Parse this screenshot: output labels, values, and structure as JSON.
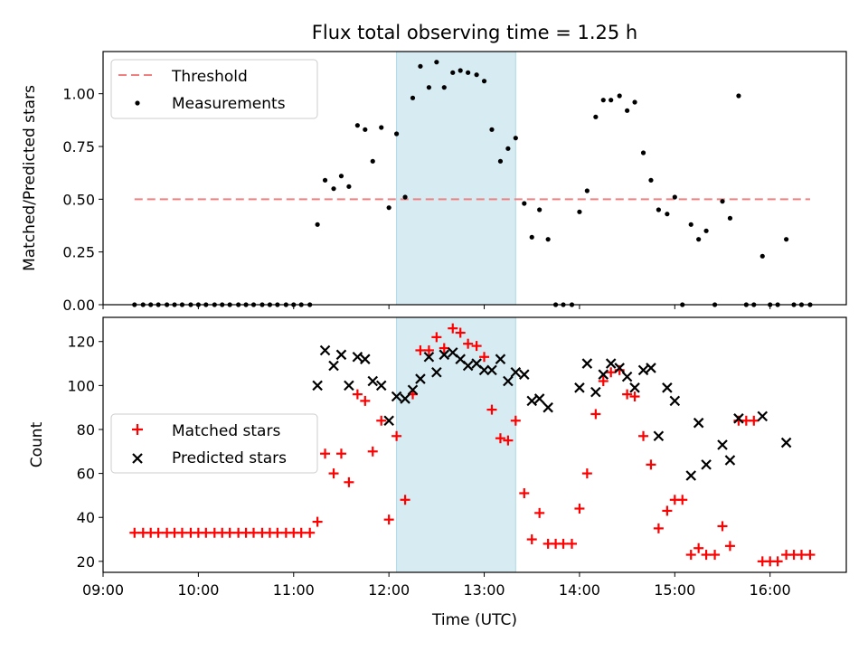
{
  "title": "Flux total observing time = 1.25 h",
  "colors": {
    "threshold": "#f08080",
    "measurements": "#000000",
    "matched": "#ff0000",
    "predicted": "#000000",
    "span": "#add8e6"
  },
  "highlight_span_hours": [
    12.08,
    13.33
  ],
  "chart_data": [
    {
      "type": "scatter",
      "panel": "top",
      "title": "Flux total observing time = 1.25 h",
      "ylabel": "Matched/Predicted stars",
      "xlabel": "",
      "xlim": [
        9.0,
        16.8
      ],
      "ylim": [
        0,
        1.2
      ],
      "yticks": [
        "0.00",
        "0.25",
        "0.50",
        "0.75",
        "1.00"
      ],
      "legend": {
        "placement": "upper-left",
        "entries": [
          "Threshold",
          "Measurements"
        ]
      },
      "threshold": {
        "name": "Threshold",
        "value": 0.5,
        "x": [
          9.33,
          16.42
        ]
      },
      "series": [
        {
          "name": "Measurements",
          "points": [
            [
              9.33,
              0
            ],
            [
              9.42,
              0
            ],
            [
              9.5,
              0
            ],
            [
              9.58,
              0
            ],
            [
              9.67,
              0
            ],
            [
              9.75,
              0
            ],
            [
              9.83,
              0
            ],
            [
              9.92,
              0
            ],
            [
              10.0,
              0
            ],
            [
              10.08,
              0
            ],
            [
              10.17,
              0
            ],
            [
              10.25,
              0
            ],
            [
              10.33,
              0
            ],
            [
              10.42,
              0
            ],
            [
              10.5,
              0
            ],
            [
              10.58,
              0
            ],
            [
              10.67,
              0
            ],
            [
              10.75,
              0
            ],
            [
              10.83,
              0
            ],
            [
              10.92,
              0
            ],
            [
              11.0,
              0
            ],
            [
              11.08,
              0
            ],
            [
              11.17,
              0
            ],
            [
              11.25,
              0.38
            ],
            [
              11.33,
              0.59
            ],
            [
              11.42,
              0.55
            ],
            [
              11.5,
              0.61
            ],
            [
              11.58,
              0.56
            ],
            [
              11.67,
              0.85
            ],
            [
              11.75,
              0.83
            ],
            [
              11.83,
              0.68
            ],
            [
              11.92,
              0.84
            ],
            [
              12.0,
              0.46
            ],
            [
              12.08,
              0.81
            ],
            [
              12.17,
              0.51
            ],
            [
              12.25,
              0.98
            ],
            [
              12.33,
              1.13
            ],
            [
              12.42,
              1.03
            ],
            [
              12.5,
              1.15
            ],
            [
              12.58,
              1.03
            ],
            [
              12.67,
              1.1
            ],
            [
              12.75,
              1.11
            ],
            [
              12.83,
              1.1
            ],
            [
              12.92,
              1.09
            ],
            [
              13.0,
              1.06
            ],
            [
              13.08,
              0.83
            ],
            [
              13.17,
              0.68
            ],
            [
              13.25,
              0.74
            ],
            [
              13.33,
              0.79
            ],
            [
              13.42,
              0.48
            ],
            [
              13.5,
              0.32
            ],
            [
              13.58,
              0.45
            ],
            [
              13.67,
              0.31
            ],
            [
              13.75,
              0
            ],
            [
              13.83,
              0
            ],
            [
              13.92,
              0
            ],
            [
              14.0,
              0.44
            ],
            [
              14.08,
              0.54
            ],
            [
              14.17,
              0.89
            ],
            [
              14.25,
              0.97
            ],
            [
              14.33,
              0.97
            ],
            [
              14.42,
              0.99
            ],
            [
              14.5,
              0.92
            ],
            [
              14.58,
              0.96
            ],
            [
              14.67,
              0.72
            ],
            [
              14.75,
              0.59
            ],
            [
              14.83,
              0.45
            ],
            [
              14.92,
              0.43
            ],
            [
              15.0,
              0.51
            ],
            [
              15.08,
              0
            ],
            [
              15.17,
              0.38
            ],
            [
              15.25,
              0.31
            ],
            [
              15.33,
              0.35
            ],
            [
              15.42,
              0
            ],
            [
              15.5,
              0.49
            ],
            [
              15.58,
              0.41
            ],
            [
              15.67,
              0.99
            ],
            [
              15.75,
              0
            ],
            [
              15.83,
              0
            ],
            [
              15.92,
              0.23
            ],
            [
              16.0,
              0
            ],
            [
              16.08,
              0
            ],
            [
              16.17,
              0.31
            ],
            [
              16.25,
              0
            ],
            [
              16.33,
              0
            ],
            [
              16.42,
              0
            ]
          ]
        }
      ]
    },
    {
      "type": "scatter",
      "panel": "bottom",
      "xlabel": "Time (UTC)",
      "ylabel": "Count",
      "xlim": [
        9.0,
        16.8
      ],
      "ylim": [
        15,
        131
      ],
      "xticks": [
        "09:00",
        "10:00",
        "11:00",
        "12:00",
        "13:00",
        "14:00",
        "15:00",
        "16:00"
      ],
      "yticks": [
        "20",
        "40",
        "60",
        "80",
        "100",
        "120"
      ],
      "legend": {
        "placement": "center-left",
        "entries": [
          "Matched stars",
          "Predicted stars"
        ]
      },
      "series": [
        {
          "name": "Matched stars",
          "points": [
            [
              9.33,
              33
            ],
            [
              9.42,
              33
            ],
            [
              9.5,
              33
            ],
            [
              9.58,
              33
            ],
            [
              9.67,
              33
            ],
            [
              9.75,
              33
            ],
            [
              9.83,
              33
            ],
            [
              9.92,
              33
            ],
            [
              10.0,
              33
            ],
            [
              10.08,
              33
            ],
            [
              10.17,
              33
            ],
            [
              10.25,
              33
            ],
            [
              10.33,
              33
            ],
            [
              10.42,
              33
            ],
            [
              10.5,
              33
            ],
            [
              10.58,
              33
            ],
            [
              10.67,
              33
            ],
            [
              10.75,
              33
            ],
            [
              10.83,
              33
            ],
            [
              10.92,
              33
            ],
            [
              11.0,
              33
            ],
            [
              11.08,
              33
            ],
            [
              11.17,
              33
            ],
            [
              11.25,
              38
            ],
            [
              11.33,
              69
            ],
            [
              11.42,
              60
            ],
            [
              11.5,
              69
            ],
            [
              11.58,
              56
            ],
            [
              11.67,
              96
            ],
            [
              11.75,
              93
            ],
            [
              11.83,
              70
            ],
            [
              11.92,
              84
            ],
            [
              12.0,
              39
            ],
            [
              12.08,
              77
            ],
            [
              12.17,
              48
            ],
            [
              12.25,
              96
            ],
            [
              12.33,
              116
            ],
            [
              12.42,
              116
            ],
            [
              12.5,
              122
            ],
            [
              12.58,
              117
            ],
            [
              12.67,
              126
            ],
            [
              12.75,
              124
            ],
            [
              12.83,
              119
            ],
            [
              12.92,
              118
            ],
            [
              13.0,
              113
            ],
            [
              13.08,
              89
            ],
            [
              13.17,
              76
            ],
            [
              13.25,
              75
            ],
            [
              13.33,
              84
            ],
            [
              13.42,
              51
            ],
            [
              13.5,
              30
            ],
            [
              13.58,
              42
            ],
            [
              13.67,
              28
            ],
            [
              13.75,
              28
            ],
            [
              13.83,
              28
            ],
            [
              13.92,
              28
            ],
            [
              14.0,
              44
            ],
            [
              14.08,
              60
            ],
            [
              14.17,
              87
            ],
            [
              14.25,
              102
            ],
            [
              14.33,
              106
            ],
            [
              14.42,
              107
            ],
            [
              14.5,
              96
            ],
            [
              14.58,
              95
            ],
            [
              14.67,
              77
            ],
            [
              14.75,
              64
            ],
            [
              14.83,
              35
            ],
            [
              14.92,
              43
            ],
            [
              15.0,
              48
            ],
            [
              15.08,
              48
            ],
            [
              15.17,
              23
            ],
            [
              15.25,
              26
            ],
            [
              15.33,
              23
            ],
            [
              15.42,
              23
            ],
            [
              15.5,
              36
            ],
            [
              15.58,
              27
            ],
            [
              15.67,
              84
            ],
            [
              15.75,
              84
            ],
            [
              15.83,
              84
            ],
            [
              15.92,
              20
            ],
            [
              16.0,
              20
            ],
            [
              16.08,
              20
            ],
            [
              16.17,
              23
            ],
            [
              16.25,
              23
            ],
            [
              16.33,
              23
            ],
            [
              16.42,
              23
            ]
          ]
        },
        {
          "name": "Predicted stars",
          "points": [
            [
              11.25,
              100
            ],
            [
              11.33,
              116
            ],
            [
              11.42,
              109
            ],
            [
              11.5,
              114
            ],
            [
              11.58,
              100
            ],
            [
              11.67,
              113
            ],
            [
              11.75,
              112
            ],
            [
              11.83,
              102
            ],
            [
              11.92,
              100
            ],
            [
              12.0,
              84
            ],
            [
              12.08,
              95
            ],
            [
              12.17,
              94
            ],
            [
              12.25,
              98
            ],
            [
              12.33,
              103
            ],
            [
              12.42,
              113
            ],
            [
              12.5,
              106
            ],
            [
              12.58,
              114
            ],
            [
              12.67,
              115
            ],
            [
              12.75,
              112
            ],
            [
              12.83,
              109
            ],
            [
              12.92,
              110
            ],
            [
              13.0,
              107
            ],
            [
              13.08,
              107
            ],
            [
              13.17,
              112
            ],
            [
              13.25,
              102
            ],
            [
              13.33,
              106
            ],
            [
              13.42,
              105
            ],
            [
              13.5,
              93
            ],
            [
              13.58,
              94
            ],
            [
              13.67,
              90
            ],
            [
              14.0,
              99
            ],
            [
              14.08,
              110
            ],
            [
              14.17,
              97
            ],
            [
              14.25,
              105
            ],
            [
              14.33,
              110
            ],
            [
              14.42,
              108
            ],
            [
              14.5,
              104
            ],
            [
              14.58,
              99
            ],
            [
              14.67,
              107
            ],
            [
              14.75,
              108
            ],
            [
              14.83,
              77
            ],
            [
              14.92,
              99
            ],
            [
              15.0,
              93
            ],
            [
              15.17,
              59
            ],
            [
              15.25,
              83
            ],
            [
              15.33,
              64
            ],
            [
              15.5,
              73
            ],
            [
              15.58,
              66
            ],
            [
              15.67,
              85
            ],
            [
              15.92,
              86
            ],
            [
              16.17,
              74
            ]
          ]
        }
      ]
    }
  ]
}
